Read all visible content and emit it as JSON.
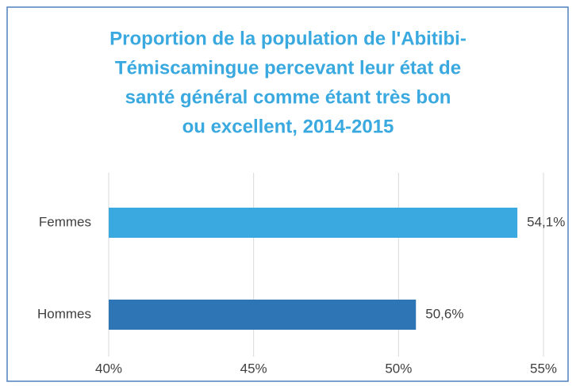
{
  "chart_data": {
    "type": "bar",
    "orientation": "horizontal",
    "title": [
      "Proportion de la population de l'Abitibi-",
      "Témiscamingue percevant leur état de",
      "santé général comme étant très bon",
      "ou excellent, 2014-2015"
    ],
    "categories": [
      "Femmes",
      "Hommes"
    ],
    "values": [
      54.1,
      50.6
    ],
    "value_labels": [
      "54,1%",
      "50,6%"
    ],
    "colors": [
      "#3aa9e0",
      "#2e75b6"
    ],
    "xlim": [
      40,
      55
    ],
    "xticks": [
      {
        "value": 40,
        "label": "40%"
      },
      {
        "value": 45,
        "label": "45%"
      },
      {
        "value": 50,
        "label": "50%"
      },
      {
        "value": 55,
        "label": "55%"
      }
    ],
    "grid": true
  }
}
